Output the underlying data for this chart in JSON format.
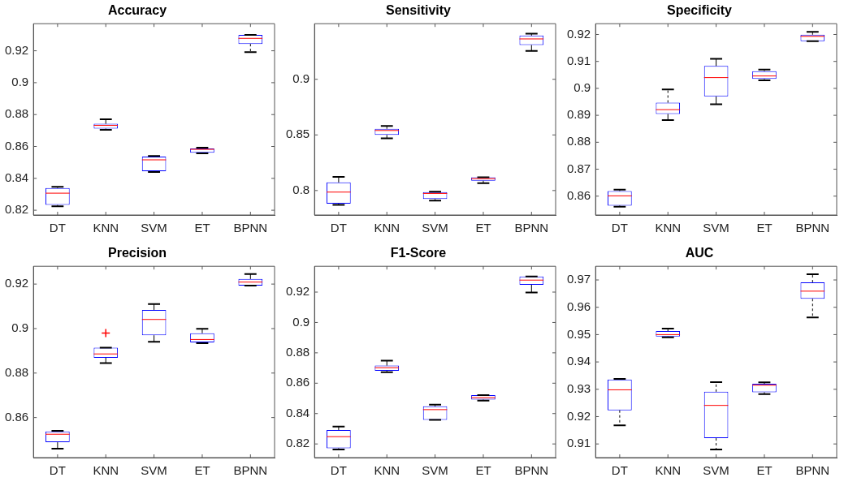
{
  "chart_data": [
    {
      "type": "box",
      "title": "Accuracy",
      "categories": [
        "DT",
        "KNN",
        "SVM",
        "ET",
        "BPNN"
      ],
      "color": "#0000ff",
      "ylim": [
        0.817,
        0.937
      ],
      "yticks": [
        0.82,
        0.84,
        0.86,
        0.88,
        0.9,
        0.92
      ],
      "grid": false,
      "legend": false,
      "boxes": [
        {
          "low": 0.8225,
          "q1": 0.8233,
          "median": 0.8307,
          "q3": 0.8339,
          "high": 0.8347
        },
        {
          "low": 0.8704,
          "q1": 0.8712,
          "median": 0.8732,
          "q3": 0.8742,
          "high": 0.877
        },
        {
          "low": 0.844,
          "q1": 0.8445,
          "median": 0.8516,
          "q3": 0.8536,
          "high": 0.854
        },
        {
          "low": 0.8557,
          "q1": 0.856,
          "median": 0.8582,
          "q3": 0.8587,
          "high": 0.8592
        },
        {
          "low": 0.9192,
          "q1": 0.9243,
          "median": 0.9278,
          "q3": 0.93,
          "high": 0.93
        }
      ]
    },
    {
      "type": "box",
      "title": "Sensitivity",
      "categories": [
        "DT",
        "KNN",
        "SVM",
        "ET",
        "BPNN"
      ],
      "color": "#0000ff",
      "ylim": [
        0.778,
        0.95
      ],
      "yticks": [
        0.8,
        0.85,
        0.9
      ],
      "grid": false,
      "legend": false,
      "boxes": [
        {
          "low": 0.7872,
          "q1": 0.7882,
          "median": 0.7986,
          "q3": 0.8073,
          "high": 0.8123
        },
        {
          "low": 0.8469,
          "q1": 0.85,
          "median": 0.854,
          "q3": 0.8555,
          "high": 0.858
        },
        {
          "low": 0.791,
          "q1": 0.7924,
          "median": 0.7974,
          "q3": 0.7986,
          "high": 0.799
        },
        {
          "low": 0.8066,
          "q1": 0.8088,
          "median": 0.8107,
          "q3": 0.812,
          "high": 0.812
        },
        {
          "low": 0.9256,
          "q1": 0.9308,
          "median": 0.9363,
          "q3": 0.9393,
          "high": 0.941
        }
      ]
    },
    {
      "type": "box",
      "title": "Specificity",
      "categories": [
        "DT",
        "KNN",
        "SVM",
        "ET",
        "BPNN"
      ],
      "color": "#0000ff",
      "ylim": [
        0.853,
        0.924
      ],
      "yticks": [
        0.86,
        0.87,
        0.88,
        0.89,
        0.9,
        0.91,
        0.92
      ],
      "grid": false,
      "legend": false,
      "boxes": [
        {
          "low": 0.8561,
          "q1": 0.8565,
          "median": 0.8601,
          "q3": 0.8619,
          "high": 0.8624
        },
        {
          "low": 0.8882,
          "q1": 0.8905,
          "median": 0.8921,
          "q3": 0.8947,
          "high": 0.8996
        },
        {
          "low": 0.8941,
          "q1": 0.897,
          "median": 0.904,
          "q3": 0.9083,
          "high": 0.911
        },
        {
          "low": 0.903,
          "q1": 0.9035,
          "median": 0.9046,
          "q3": 0.9064,
          "high": 0.907
        },
        {
          "low": 0.9175,
          "q1": 0.9175,
          "median": 0.9193,
          "q3": 0.9199,
          "high": 0.921
        }
      ]
    },
    {
      "type": "box",
      "title": "Precision",
      "categories": [
        "DT",
        "KNN",
        "SVM",
        "ET",
        "BPNN"
      ],
      "color": "#0000ff",
      "ylim": [
        0.842,
        0.928
      ],
      "yticks": [
        0.86,
        0.88,
        0.9,
        0.92
      ],
      "grid": false,
      "legend": false,
      "boxes": [
        {
          "low": 0.846,
          "q1": 0.8489,
          "median": 0.8525,
          "q3": 0.8538,
          "high": 0.854
        },
        {
          "low": 0.8845,
          "q1": 0.8869,
          "median": 0.8886,
          "q3": 0.8914,
          "high": 0.8914,
          "outliers": [
            0.898
          ]
        },
        {
          "low": 0.8941,
          "q1": 0.897,
          "median": 0.9041,
          "q3": 0.9084,
          "high": 0.911
        },
        {
          "low": 0.8934,
          "q1": 0.8938,
          "median": 0.8951,
          "q3": 0.8979,
          "high": 0.8999
        },
        {
          "low": 0.9193,
          "q1": 0.9193,
          "median": 0.9209,
          "q3": 0.9223,
          "high": 0.9245
        }
      ]
    },
    {
      "type": "box",
      "title": "F1-Score",
      "categories": [
        "DT",
        "KNN",
        "SVM",
        "ET",
        "BPNN"
      ],
      "color": "#0000ff",
      "ylim": [
        0.811,
        0.937
      ],
      "yticks": [
        0.82,
        0.84,
        0.86,
        0.88,
        0.9,
        0.92
      ],
      "grid": false,
      "legend": false,
      "boxes": [
        {
          "low": 0.8163,
          "q1": 0.8172,
          "median": 0.8248,
          "q3": 0.8292,
          "high": 0.8314
        },
        {
          "low": 0.8672,
          "q1": 0.8682,
          "median": 0.8702,
          "q3": 0.8716,
          "high": 0.8748
        },
        {
          "low": 0.8358,
          "q1": 0.8358,
          "median": 0.8426,
          "q3": 0.8448,
          "high": 0.8459
        },
        {
          "low": 0.8485,
          "q1": 0.8492,
          "median": 0.8505,
          "q3": 0.8522,
          "high": 0.8522
        },
        {
          "low": 0.9198,
          "q1": 0.9248,
          "median": 0.9279,
          "q3": 0.9303,
          "high": 0.9303
        }
      ]
    },
    {
      "type": "box",
      "title": "AUC",
      "categories": [
        "DT",
        "KNN",
        "SVM",
        "ET",
        "BPNN"
      ],
      "color": "#0000ff",
      "ylim": [
        0.905,
        0.975
      ],
      "yticks": [
        0.91,
        0.92,
        0.93,
        0.94,
        0.95,
        0.96,
        0.97
      ],
      "grid": false,
      "legend": false,
      "boxes": [
        {
          "low": 0.9168,
          "q1": 0.9223,
          "median": 0.9298,
          "q3": 0.9336,
          "high": 0.9338
        },
        {
          "low": 0.949,
          "q1": 0.9493,
          "median": 0.95,
          "q3": 0.9513,
          "high": 0.9522
        },
        {
          "low": 0.908,
          "q1": 0.9121,
          "median": 0.9241,
          "q3": 0.9291,
          "high": 0.9326
        },
        {
          "low": 0.9282,
          "q1": 0.9289,
          "median": 0.9315,
          "q3": 0.932,
          "high": 0.9325
        },
        {
          "low": 0.9563,
          "q1": 0.9631,
          "median": 0.9659,
          "q3": 0.9691,
          "high": 0.9721
        }
      ]
    }
  ]
}
